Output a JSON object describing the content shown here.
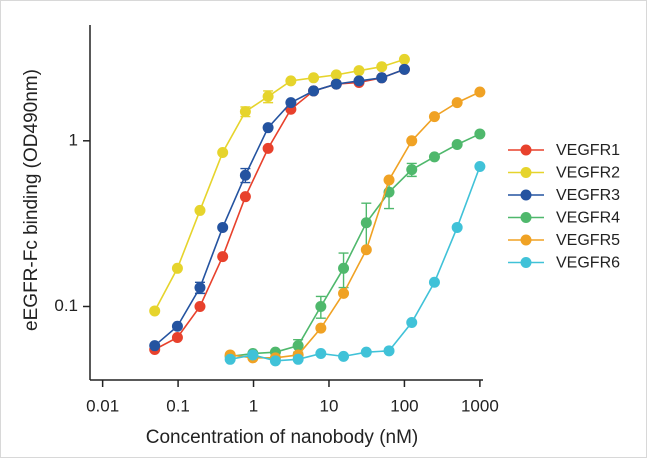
{
  "chart_data": {
    "type": "line",
    "xlabel": "Concentration of nanobody (nM)",
    "ylabel": "eEGFR-Fc binding  (OD490nm)",
    "xscale": "log",
    "yscale": "log",
    "xlim": [
      0.0068,
      1100
    ],
    "ylim": [
      0.036,
      5
    ],
    "xticks": [
      0.01,
      0.1,
      1,
      10,
      100,
      1000
    ],
    "yticks": [
      0.1,
      1
    ],
    "legend": "right",
    "series": [
      {
        "name": "VEGFR1",
        "color": "#e8412c",
        "x": [
          0.049,
          0.098,
          0.195,
          0.39,
          0.78,
          1.56,
          3.125,
          6.25,
          12.5,
          25,
          50,
          100
        ],
        "values": [
          0.055,
          0.065,
          0.1,
          0.2,
          0.46,
          0.9,
          1.55,
          2.0,
          2.2,
          2.25,
          2.4,
          2.7
        ]
      },
      {
        "name": "VEGFR2",
        "color": "#e6d42c",
        "x": [
          0.049,
          0.098,
          0.195,
          0.39,
          0.78,
          1.56,
          3.125,
          6.25,
          12.5,
          25,
          50,
          100
        ],
        "values": [
          0.094,
          0.17,
          0.38,
          0.85,
          1.5,
          1.85,
          2.3,
          2.4,
          2.5,
          2.65,
          2.8,
          3.1
        ],
        "errors": [
          null,
          null,
          null,
          null,
          0.1,
          0.15,
          null,
          null,
          null,
          null,
          null,
          null
        ]
      },
      {
        "name": "VEGFR3",
        "color": "#2453a0",
        "x": [
          0.049,
          0.098,
          0.195,
          0.39,
          0.78,
          1.56,
          3.125,
          6.25,
          12.5,
          25,
          50,
          100
        ],
        "values": [
          0.058,
          0.076,
          0.13,
          0.3,
          0.62,
          1.2,
          1.7,
          2.0,
          2.2,
          2.3,
          2.4,
          2.7
        ],
        "errors": [
          null,
          null,
          0.01,
          null,
          0.06,
          null,
          null,
          null,
          null,
          null,
          null,
          null
        ]
      },
      {
        "name": "VEGFR4",
        "color": "#4fb86c",
        "x": [
          0.49,
          0.98,
          1.95,
          3.9,
          7.8,
          15.6,
          31.25,
          62.5,
          125,
          250,
          500,
          1000
        ],
        "values": [
          0.05,
          0.052,
          0.053,
          0.058,
          0.1,
          0.17,
          0.32,
          0.49,
          0.67,
          0.8,
          0.95,
          1.1
        ],
        "errors": [
          null,
          null,
          null,
          0.005,
          0.015,
          0.04,
          0.1,
          0.1,
          0.06,
          null,
          null,
          null
        ]
      },
      {
        "name": "VEGFR5",
        "color": "#f0a224",
        "x": [
          0.49,
          0.98,
          1.95,
          3.9,
          7.8,
          15.6,
          31.25,
          62.5,
          125,
          250,
          500,
          1000
        ],
        "values": [
          0.051,
          0.049,
          0.049,
          0.051,
          0.074,
          0.12,
          0.22,
          0.58,
          1.0,
          1.4,
          1.7,
          1.97
        ]
      },
      {
        "name": "VEGFR6",
        "color": "#40c2d8",
        "x": [
          0.49,
          0.98,
          1.95,
          3.9,
          7.8,
          15.6,
          31.25,
          62.5,
          125,
          250,
          500,
          1000
        ],
        "values": [
          0.048,
          0.051,
          0.047,
          0.048,
          0.052,
          0.05,
          0.053,
          0.054,
          0.08,
          0.14,
          0.3,
          0.7
        ]
      }
    ]
  }
}
